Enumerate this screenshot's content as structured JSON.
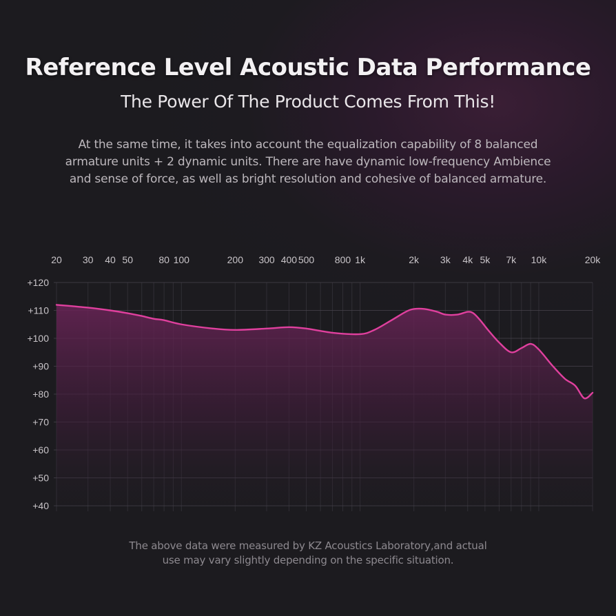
{
  "header": {
    "title": "Reference Level Acoustic Data Performance",
    "subtitle": "The Power Of The Product Comes From This!",
    "description_lines": [
      "At the same time, it takes into account the equalization capability of 8 balanced",
      "armature units + 2 dynamic units. There are have dynamic low-frequency Ambience",
      "and sense of force, as well as bright resolution and cohesive of balanced armature."
    ]
  },
  "footer": {
    "note_lines": [
      "The above data were measured by KZ Acoustics Laboratory,and actual",
      "use may vary slightly depending on the specific situation."
    ]
  },
  "colors": {
    "curve": "#e0409e",
    "fill_top": "#6a2457",
    "grid": "#4a4650"
  },
  "chart_data": {
    "type": "area",
    "x_scale": "log",
    "xlim": [
      20,
      20000
    ],
    "ylim": [
      40,
      120
    ],
    "x_ticks": [
      {
        "value": 20,
        "label": "20"
      },
      {
        "value": 30,
        "label": "30"
      },
      {
        "value": 40,
        "label": "40"
      },
      {
        "value": 50,
        "label": "50"
      },
      {
        "value": 80,
        "label": "80"
      },
      {
        "value": 100,
        "label": "100"
      },
      {
        "value": 200,
        "label": "200"
      },
      {
        "value": 300,
        "label": "300"
      },
      {
        "value": 400,
        "label": "400"
      },
      {
        "value": 500,
        "label": "500"
      },
      {
        "value": 800,
        "label": "800"
      },
      {
        "value": 1000,
        "label": "1k"
      },
      {
        "value": 2000,
        "label": "2k"
      },
      {
        "value": 3000,
        "label": "3k"
      },
      {
        "value": 4000,
        "label": "4k"
      },
      {
        "value": 5000,
        "label": "5k"
      },
      {
        "value": 7000,
        "label": "7k"
      },
      {
        "value": 10000,
        "label": "10k"
      },
      {
        "value": 20000,
        "label": "20k"
      }
    ],
    "y_ticks": [
      {
        "value": 120,
        "label": "+120"
      },
      {
        "value": 110,
        "label": "+110"
      },
      {
        "value": 100,
        "label": "+100"
      },
      {
        "value": 90,
        "label": "+90"
      },
      {
        "value": 80,
        "label": "+80"
      },
      {
        "value": 70,
        "label": "+70"
      },
      {
        "value": 60,
        "label": "+60"
      },
      {
        "value": 50,
        "label": "+50"
      },
      {
        "value": 40,
        "label": "+40"
      }
    ],
    "series": [
      {
        "x": [
          20,
          30,
          40,
          50,
          60,
          70,
          80,
          100,
          150,
          200,
          300,
          400,
          500,
          700,
          1000,
          1200,
          1500,
          1800,
          2000,
          2300,
          2700,
          3000,
          3500,
          4000,
          4300,
          4700,
          5200,
          6000,
          7000,
          8000,
          9000,
          10000,
          12000,
          14000,
          16000,
          18000,
          20000
        ],
        "y": [
          112,
          111,
          110,
          109,
          108,
          107,
          106.5,
          105,
          103.5,
          103,
          103.5,
          104,
          103.5,
          102,
          101.5,
          103,
          106.5,
          109.5,
          110.5,
          110.5,
          109.5,
          108.5,
          108.5,
          109.5,
          109,
          106.5,
          103,
          98.5,
          95,
          96.5,
          98,
          96,
          90,
          85.5,
          83,
          78.5,
          80.5
        ]
      }
    ],
    "grid": true,
    "title": "",
    "xlabel": "",
    "ylabel": ""
  }
}
